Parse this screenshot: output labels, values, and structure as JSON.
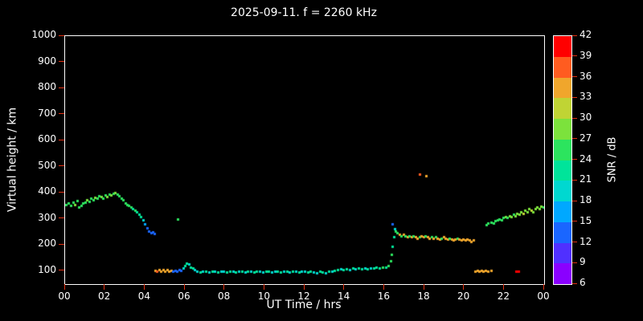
{
  "title": "2025-09-11. f = 2260 kHz",
  "axes": {
    "x_label": "UT Time / hrs",
    "y_label": "Virtual height / km",
    "x_tick_values": [
      0,
      2,
      4,
      6,
      8,
      10,
      12,
      14,
      16,
      18,
      20,
      22,
      24
    ],
    "x_tick_labels": [
      "00",
      "02",
      "04",
      "06",
      "08",
      "10",
      "12",
      "14",
      "16",
      "18",
      "20",
      "22",
      "00"
    ],
    "y_tick_values": [
      100,
      200,
      300,
      400,
      500,
      600,
      700,
      800,
      900,
      1000
    ],
    "y_tick_labels": [
      "100",
      "200",
      "300",
      "400",
      "500",
      "600",
      "700",
      "800",
      "900",
      "1000"
    ]
  },
  "colorbar": {
    "label": "SNR / dB",
    "tick_values": [
      6,
      9,
      12,
      15,
      18,
      21,
      24,
      27,
      30,
      33,
      36,
      39,
      42
    ],
    "colors_low_to_high": [
      "#8a00ff",
      "#5030ff",
      "#1a66ff",
      "#00a8ff",
      "#00d8d0",
      "#00e49a",
      "#2ce45e",
      "#7ce23c",
      "#c0d434",
      "#f0a62c",
      "#ff5c20",
      "#ff0000"
    ]
  },
  "chart_data": {
    "type": "scatter",
    "title": "2025-09-11. f = 2260 kHz",
    "xlabel": "UT Time / hrs",
    "ylabel": "Virtual height / km",
    "xlim": [
      0,
      24
    ],
    "ylim": [
      50,
      1000
    ],
    "color_variable": "SNR / dB",
    "color_range": [
      6,
      42
    ],
    "points_format": [
      "time_ut_hrs",
      "virtual_height_km",
      "snr_db"
    ],
    "points": [
      [
        0.05,
        355,
        26
      ],
      [
        0.15,
        360,
        24
      ],
      [
        0.3,
        350,
        26
      ],
      [
        0.4,
        365,
        25
      ],
      [
        0.5,
        355,
        27
      ],
      [
        0.6,
        370,
        24
      ],
      [
        0.7,
        345,
        26
      ],
      [
        0.8,
        350,
        25
      ],
      [
        0.9,
        360,
        26
      ],
      [
        1.0,
        365,
        24
      ],
      [
        1.1,
        372,
        27
      ],
      [
        1.2,
        368,
        25
      ],
      [
        1.3,
        380,
        26
      ],
      [
        1.4,
        374,
        24
      ],
      [
        1.5,
        382,
        27
      ],
      [
        1.6,
        378,
        25
      ],
      [
        1.7,
        388,
        26
      ],
      [
        1.8,
        384,
        27
      ],
      [
        1.9,
        380,
        25
      ],
      [
        2.0,
        390,
        26
      ],
      [
        2.1,
        386,
        27
      ],
      [
        2.2,
        394,
        26
      ],
      [
        2.3,
        390,
        28
      ],
      [
        2.4,
        396,
        26
      ],
      [
        2.5,
        400,
        27
      ],
      [
        2.6,
        394,
        25
      ],
      [
        2.7,
        388,
        26
      ],
      [
        2.8,
        380,
        25
      ],
      [
        2.9,
        372,
        24
      ],
      [
        3.0,
        362,
        25
      ],
      [
        3.1,
        355,
        24
      ],
      [
        3.2,
        350,
        25
      ],
      [
        3.3,
        344,
        24
      ],
      [
        3.4,
        338,
        23
      ],
      [
        3.5,
        332,
        24
      ],
      [
        3.6,
        326,
        23
      ],
      [
        3.7,
        318,
        22
      ],
      [
        3.8,
        308,
        21
      ],
      [
        3.9,
        296,
        20
      ],
      [
        4.0,
        282,
        17
      ],
      [
        4.1,
        265,
        14
      ],
      [
        4.2,
        252,
        12
      ],
      [
        4.3,
        246,
        13
      ],
      [
        4.4,
        250,
        12
      ],
      [
        4.45,
        244,
        14
      ],
      [
        5.65,
        300,
        24
      ],
      [
        4.5,
        102,
        34
      ],
      [
        4.6,
        98,
        36
      ],
      [
        4.7,
        104,
        34
      ],
      [
        4.8,
        100,
        33
      ],
      [
        4.9,
        104,
        35
      ],
      [
        5.0,
        100,
        34
      ],
      [
        5.1,
        104,
        33
      ],
      [
        5.2,
        100,
        35
      ],
      [
        5.3,
        102,
        34
      ],
      [
        5.4,
        100,
        14
      ],
      [
        5.5,
        102,
        13
      ],
      [
        5.6,
        100,
        12
      ],
      [
        5.7,
        104,
        13
      ],
      [
        5.8,
        102,
        14
      ],
      [
        5.9,
        112,
        18
      ],
      [
        6.0,
        122,
        21
      ],
      [
        6.1,
        130,
        22
      ],
      [
        6.2,
        126,
        20
      ],
      [
        6.3,
        116,
        21
      ],
      [
        6.4,
        110,
        22
      ],
      [
        6.5,
        106,
        20
      ],
      [
        6.6,
        100,
        19
      ],
      [
        6.75,
        97,
        21
      ],
      [
        6.9,
        100,
        18
      ],
      [
        7.05,
        99,
        22
      ],
      [
        7.2,
        96,
        20
      ],
      [
        7.35,
        100,
        23
      ],
      [
        7.5,
        98,
        19
      ],
      [
        7.65,
        96,
        21
      ],
      [
        7.8,
        100,
        20
      ],
      [
        7.95,
        98,
        18
      ],
      [
        8.1,
        96,
        22
      ],
      [
        8.25,
        100,
        21
      ],
      [
        8.4,
        98,
        19
      ],
      [
        8.55,
        96,
        23
      ],
      [
        8.7,
        100,
        20
      ],
      [
        8.85,
        98,
        21
      ],
      [
        9.0,
        96,
        18
      ],
      [
        9.15,
        100,
        22
      ],
      [
        9.3,
        98,
        19
      ],
      [
        9.45,
        96,
        21
      ],
      [
        9.6,
        100,
        23
      ],
      [
        9.75,
        98,
        20
      ],
      [
        9.9,
        96,
        18
      ],
      [
        10.05,
        100,
        21
      ],
      [
        10.2,
        98,
        22
      ],
      [
        10.35,
        96,
        19
      ],
      [
        10.5,
        100,
        20
      ],
      [
        10.65,
        98,
        23
      ],
      [
        10.8,
        96,
        21
      ],
      [
        10.95,
        100,
        18
      ],
      [
        11.1,
        98,
        22
      ],
      [
        11.25,
        96,
        20
      ],
      [
        11.4,
        100,
        21
      ],
      [
        11.55,
        98,
        19
      ],
      [
        11.7,
        96,
        23
      ],
      [
        11.85,
        100,
        20
      ],
      [
        12.0,
        98,
        18
      ],
      [
        12.15,
        95,
        21
      ],
      [
        12.3,
        98,
        22
      ],
      [
        12.45,
        96,
        19
      ],
      [
        12.6,
        94,
        20
      ],
      [
        12.75,
        98,
        23
      ],
      [
        12.9,
        96,
        21
      ],
      [
        13.05,
        94,
        18
      ],
      [
        13.2,
        98,
        22
      ],
      [
        13.35,
        100,
        20
      ],
      [
        13.5,
        102,
        21
      ],
      [
        13.65,
        104,
        22
      ],
      [
        13.8,
        108,
        20
      ],
      [
        13.95,
        105,
        23
      ],
      [
        14.1,
        109,
        21
      ],
      [
        14.25,
        106,
        19
      ],
      [
        14.4,
        110,
        22
      ],
      [
        14.55,
        107,
        20
      ],
      [
        14.7,
        110,
        23
      ],
      [
        14.85,
        108,
        21
      ],
      [
        15.0,
        111,
        19
      ],
      [
        15.15,
        108,
        22
      ],
      [
        15.3,
        112,
        20
      ],
      [
        15.45,
        110,
        23
      ],
      [
        15.6,
        114,
        21
      ],
      [
        15.75,
        112,
        22
      ],
      [
        15.9,
        115,
        24
      ],
      [
        16.05,
        116,
        23
      ],
      [
        16.2,
        120,
        24
      ],
      [
        16.3,
        140,
        24
      ],
      [
        16.35,
        165,
        25
      ],
      [
        16.4,
        195,
        23
      ],
      [
        16.45,
        230,
        22
      ],
      [
        16.5,
        262,
        20
      ],
      [
        16.4,
        282,
        12
      ],
      [
        16.55,
        252,
        25
      ],
      [
        16.65,
        246,
        26
      ],
      [
        16.75,
        240,
        34
      ],
      [
        16.85,
        236,
        25
      ],
      [
        16.95,
        240,
        34
      ],
      [
        17.05,
        234,
        26
      ],
      [
        17.15,
        230,
        35
      ],
      [
        17.25,
        234,
        25
      ],
      [
        17.35,
        230,
        34
      ],
      [
        17.45,
        236,
        26
      ],
      [
        17.55,
        230,
        35
      ],
      [
        17.65,
        226,
        34
      ],
      [
        17.75,
        230,
        26
      ],
      [
        17.85,
        234,
        34
      ],
      [
        17.95,
        230,
        35
      ],
      [
        18.05,
        234,
        25
      ],
      [
        18.15,
        230,
        34
      ],
      [
        18.25,
        226,
        35
      ],
      [
        18.35,
        230,
        26
      ],
      [
        18.45,
        226,
        34
      ],
      [
        18.55,
        230,
        25
      ],
      [
        18.65,
        226,
        34
      ],
      [
        18.75,
        222,
        35
      ],
      [
        18.85,
        226,
        26
      ],
      [
        18.95,
        230,
        34
      ],
      [
        19.05,
        226,
        35
      ],
      [
        19.15,
        222,
        34
      ],
      [
        19.25,
        226,
        26
      ],
      [
        19.35,
        222,
        34
      ],
      [
        19.45,
        218,
        35
      ],
      [
        19.55,
        222,
        34
      ],
      [
        19.65,
        226,
        26
      ],
      [
        19.75,
        222,
        34
      ],
      [
        19.85,
        218,
        35
      ],
      [
        19.95,
        222,
        34
      ],
      [
        20.05,
        218,
        33
      ],
      [
        20.15,
        222,
        34
      ],
      [
        20.25,
        218,
        35
      ],
      [
        20.35,
        214,
        33
      ],
      [
        20.45,
        218,
        34
      ],
      [
        17.75,
        470,
        38
      ],
      [
        18.1,
        465,
        34
      ],
      [
        20.55,
        100,
        34
      ],
      [
        20.65,
        103,
        33
      ],
      [
        20.75,
        100,
        35
      ],
      [
        20.85,
        103,
        34
      ],
      [
        20.95,
        100,
        33
      ],
      [
        21.05,
        102,
        34
      ],
      [
        21.2,
        100,
        33
      ],
      [
        21.35,
        102,
        34
      ],
      [
        22.6,
        100,
        41
      ],
      [
        22.7,
        98,
        40
      ],
      [
        21.1,
        278,
        24
      ],
      [
        21.2,
        284,
        25
      ],
      [
        21.35,
        288,
        24
      ],
      [
        21.45,
        284,
        26
      ],
      [
        21.55,
        292,
        25
      ],
      [
        21.65,
        296,
        24
      ],
      [
        21.75,
        300,
        26
      ],
      [
        21.85,
        296,
        25
      ],
      [
        21.95,
        304,
        26
      ],
      [
        22.05,
        308,
        27
      ],
      [
        22.15,
        304,
        26
      ],
      [
        22.25,
        312,
        28
      ],
      [
        22.35,
        308,
        27
      ],
      [
        22.45,
        316,
        26
      ],
      [
        22.55,
        312,
        28
      ],
      [
        22.65,
        322,
        27
      ],
      [
        22.75,
        318,
        29
      ],
      [
        22.85,
        326,
        28
      ],
      [
        22.95,
        322,
        30
      ],
      [
        23.05,
        332,
        29
      ],
      [
        23.15,
        328,
        28
      ],
      [
        23.25,
        338,
        29
      ],
      [
        23.35,
        332,
        30
      ],
      [
        23.45,
        328,
        28
      ],
      [
        23.55,
        338,
        29
      ],
      [
        23.65,
        344,
        28
      ],
      [
        23.75,
        340,
        27
      ],
      [
        23.85,
        348,
        28
      ],
      [
        23.95,
        344,
        26
      ]
    ]
  }
}
